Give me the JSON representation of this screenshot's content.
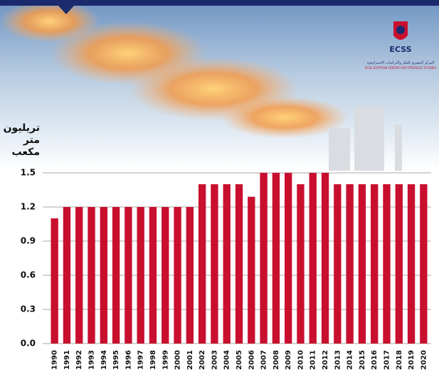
{
  "chart_data": {
    "type": "bar",
    "y_label": [
      "تريليون",
      "متر",
      "مكعب"
    ],
    "categories": [
      "1990",
      "1991",
      "1992",
      "1993",
      "1994",
      "1995",
      "1996",
      "1997",
      "1998",
      "1999",
      "2000",
      "2001",
      "2002",
      "2003",
      "2004",
      "2005",
      "2006",
      "2007",
      "2008",
      "2009",
      "2010",
      "2011",
      "2012",
      "2013",
      "2014",
      "2015",
      "2016",
      "2017",
      "2018",
      "2019",
      "2020"
    ],
    "values": [
      1.1,
      1.2,
      1.2,
      1.2,
      1.2,
      1.2,
      1.2,
      1.2,
      1.2,
      1.2,
      1.2,
      1.2,
      1.4,
      1.4,
      1.4,
      1.4,
      1.29,
      1.5,
      1.5,
      1.5,
      1.4,
      1.5,
      1.5,
      1.4,
      1.4,
      1.4,
      1.4,
      1.4,
      1.4,
      1.4,
      1.4
    ],
    "color": "#c8102e",
    "ylim": [
      0,
      1.5
    ],
    "yticks": [
      {
        "value": 0,
        "label": "0.0"
      },
      0.3,
      0.6,
      0.9,
      1.2,
      1.5
    ],
    "grid": true
  },
  "logo": {
    "name": "ECSS",
    "arabic": "المركز المصري للفكر والدراسات الاستراتيجية",
    "english": "ECSS EGYPTIAN CENTER FOR STRATEGIC STUDIES"
  }
}
